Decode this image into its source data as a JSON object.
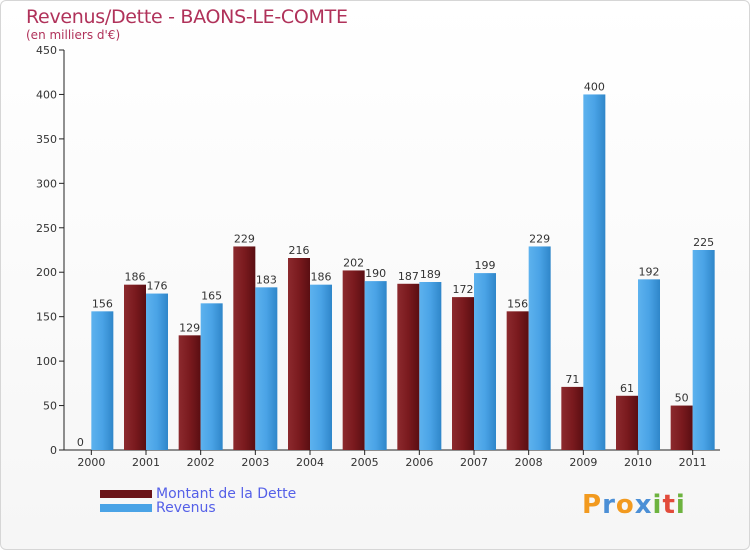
{
  "chart_data": {
    "type": "bar",
    "title": "Revenus/Dette - BAONS-LE-COMTE",
    "subtitle": "(en milliers d'€)",
    "categories": [
      "2000",
      "2001",
      "2002",
      "2003",
      "2004",
      "2005",
      "2006",
      "2007",
      "2008",
      "2009",
      "2010",
      "2011"
    ],
    "series": [
      {
        "name": "Montant de la Dette",
        "color": "#7a1a1e",
        "values": [
          0,
          186,
          129,
          229,
          216,
          202,
          187,
          172,
          156,
          71,
          61,
          50
        ]
      },
      {
        "name": "Revenus",
        "color": "#4aa3e6",
        "values": [
          156,
          176,
          165,
          183,
          186,
          190,
          189,
          199,
          229,
          400,
          192,
          225
        ]
      }
    ],
    "ylim": [
      0,
      450
    ],
    "yticks": [
      0,
      50,
      100,
      150,
      200,
      250,
      300,
      350,
      400,
      450
    ],
    "xlabel": "",
    "ylabel": "",
    "grid": false
  },
  "legend": {
    "debt_label": "Montant de la Dette",
    "revenue_label": "Revenus"
  },
  "logo": {
    "letters": [
      "P",
      "r",
      "o",
      "x",
      "i",
      "t",
      "i"
    ],
    "colors": [
      "#f29a1f",
      "#4b8fd6",
      "#f29a1f",
      "#4b8fd6",
      "#6db33f",
      "#e24b3b",
      "#6db33f"
    ]
  }
}
